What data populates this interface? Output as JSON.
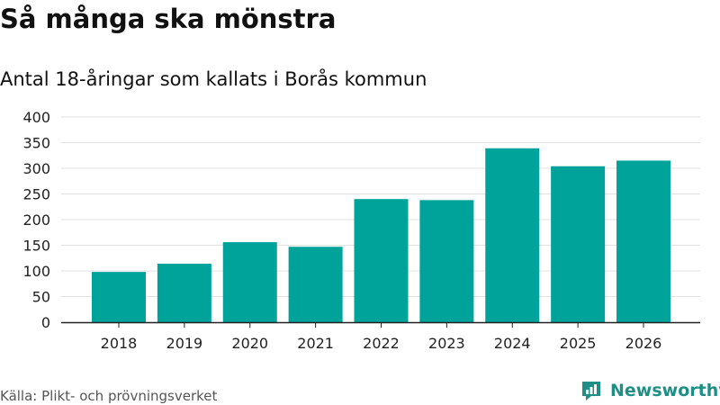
{
  "header": {
    "title": "Så många ska mönstra",
    "subtitle": "Antal 18-åringar som kallats i Borås kommun"
  },
  "footer": {
    "source": "Källa: Plikt- och prövningsverket",
    "brand": "Newsworthy"
  },
  "colors": {
    "bar": "#00a39a",
    "grid": "#e0e0e0",
    "axis": "#222222",
    "text": "#222222",
    "brand": "#1f8f86"
  },
  "chart_data": {
    "type": "bar",
    "title": "Så många ska mönstra",
    "subtitle": "Antal 18-åringar som kallats i Borås kommun",
    "xlabel": "",
    "ylabel": "",
    "categories": [
      "2018",
      "2019",
      "2020",
      "2021",
      "2022",
      "2023",
      "2024",
      "2025",
      "2026"
    ],
    "values": [
      98,
      114,
      156,
      147,
      240,
      238,
      339,
      304,
      315
    ],
    "ylim": [
      0,
      400
    ],
    "yticks": [
      0,
      50,
      100,
      150,
      200,
      250,
      300,
      350,
      400
    ],
    "grid": true,
    "legend": "none"
  }
}
